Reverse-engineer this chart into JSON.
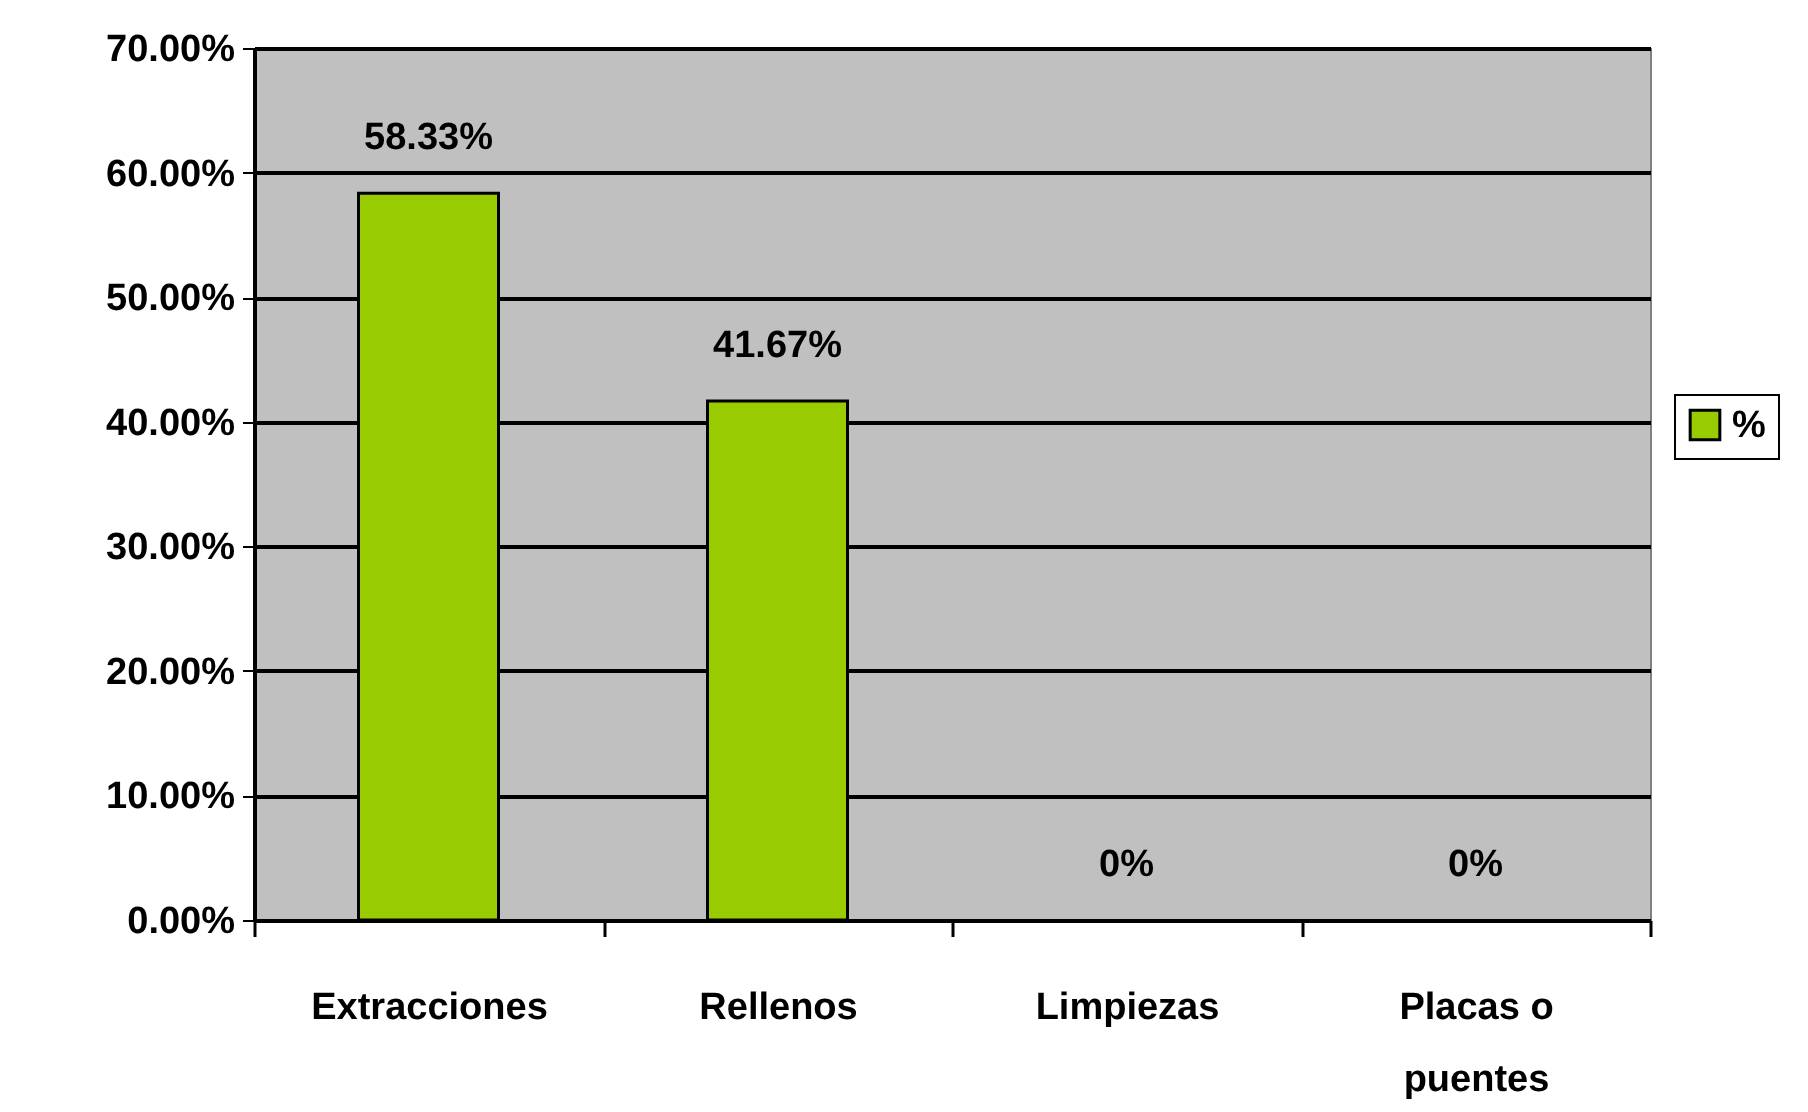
{
  "chart_data": {
    "type": "bar",
    "categories": [
      "Extracciones",
      "Rellenos",
      "Limpiezas",
      "Placas o puentes"
    ],
    "series": [
      {
        "name": "%",
        "color": "#99cc00",
        "values": [
          58.33,
          41.67,
          0,
          0
        ],
        "value_labels": [
          "58.33%",
          "41.67%",
          "0%",
          "0%"
        ]
      }
    ],
    "ylim": [
      0,
      70
    ],
    "yticks": [
      {
        "value": 0,
        "label": "0.00%"
      },
      {
        "value": 10,
        "label": "10.00%"
      },
      {
        "value": 20,
        "label": "20.00%"
      },
      {
        "value": 30,
        "label": "30.00%"
      },
      {
        "value": 40,
        "label": "40.00%"
      },
      {
        "value": 50,
        "label": "50.00%"
      },
      {
        "value": 60,
        "label": "60.00%"
      },
      {
        "value": 70,
        "label": "70.00%"
      }
    ],
    "grid": "y",
    "legend": "right"
  }
}
